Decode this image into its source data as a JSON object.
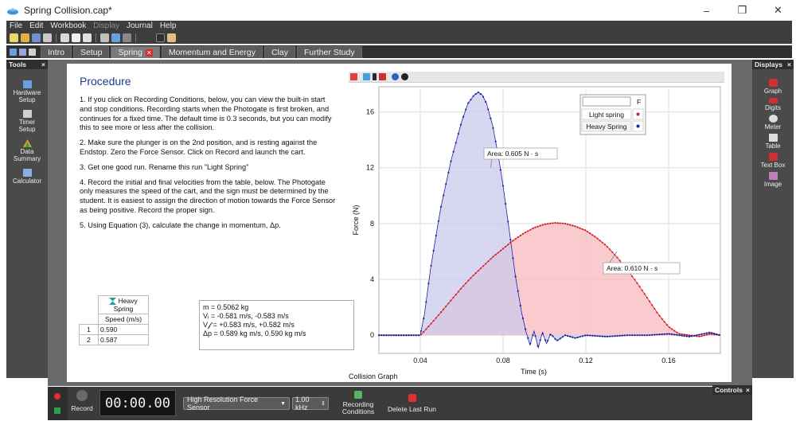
{
  "window": {
    "title": "Spring Collision.cap*",
    "controls": [
      "–",
      "❐",
      "✕"
    ]
  },
  "menu": [
    {
      "label": "File",
      "enabled": true
    },
    {
      "label": "Edit",
      "enabled": true
    },
    {
      "label": "Workbook",
      "enabled": true
    },
    {
      "label": "Display",
      "enabled": false
    },
    {
      "label": "Journal",
      "enabled": true
    },
    {
      "label": "Help",
      "enabled": true
    }
  ],
  "tabs": [
    {
      "label": "Intro",
      "active": false
    },
    {
      "label": "Setup",
      "active": false
    },
    {
      "label": "Spring",
      "active": true,
      "close": "✕"
    },
    {
      "label": "Momentum and Energy",
      "active": false
    },
    {
      "label": "Clay",
      "active": false
    },
    {
      "label": "Further Study",
      "active": false
    }
  ],
  "tools": {
    "header": "Tools",
    "close": "×",
    "items": [
      {
        "label1": "Hardware",
        "label2": "Setup",
        "icon": "hardware-icon",
        "color": "#6a9fe0"
      },
      {
        "label1": "Timer",
        "label2": "Setup",
        "icon": "timer-icon",
        "color": "#d0d0d0"
      },
      {
        "label1": "Data",
        "label2": "Summary",
        "icon": "data-summary-icon",
        "color": "#e0a030"
      },
      {
        "label1": "Calculator",
        "label2": "",
        "icon": "calculator-icon",
        "color": "#8ab0e0"
      }
    ]
  },
  "displays": {
    "header": "Displays",
    "close": "×",
    "items": [
      {
        "label": "Graph",
        "icon": "graph-icon",
        "color": "#cc3030"
      },
      {
        "label": "Digits",
        "icon": "digits-icon",
        "color": "#cc3030"
      },
      {
        "label": "Meter",
        "icon": "meter-icon",
        "color": "#dddddd"
      },
      {
        "label": "Table",
        "icon": "table-icon",
        "color": "#dddddd"
      },
      {
        "label": "Text Box",
        "icon": "text-box-icon",
        "color": "#cc3030"
      },
      {
        "label": "Image",
        "icon": "image-icon",
        "color": "#c080c0"
      }
    ]
  },
  "procedure": {
    "heading": "Procedure",
    "steps": [
      "1.  If you click on Recording Conditions, below, you can view the built-in start and stop conditions.  Recording starts when the Photogate is first broken, and continues for a fixed time.  The default time is 0.3 seconds, but you can modify this to see more or less after the collision.",
      "2.  Make sure the plunger is on the 2nd position, and is resting against the Endstop.  Zero the Force Sensor.  Click on Record and launch the cart.",
      "3.  Get one good run. Rename this run \"Light Spring\"",
      "4.   Record the initial and final velocities from the table, below. The Photogate only measures the speed of the cart, and the sign must be determined by the student.  It is easiest to assign the direction of motion towards the Force Sensor as being positive. Record the proper sign.",
      "5.  Using Equation (3), calculate the change in momentum, Δp."
    ]
  },
  "speed_table": {
    "run_label": "Heavy Spring",
    "column": "Speed (m/s)",
    "rows": [
      {
        "index": "1",
        "value": "0.590"
      },
      {
        "index": "2",
        "value": "0.587"
      }
    ]
  },
  "results": {
    "lines": [
      "m = 0.5062 kg",
      "Vᵢ = -0.581 m/s, -0.583 m/s",
      "V𝒻 = +0.583 m/s, +0.582 m/s",
      "Δp = 0.589 kg m/s, 0.590 kg m/s"
    ]
  },
  "graph": {
    "caption": "Collision Graph",
    "legend_header": "F"
  },
  "chart_data": {
    "type": "area",
    "title": "Collision Graph",
    "xlabel": "Time (s)",
    "ylabel": "Force (N)",
    "xlim": [
      0.02,
      0.185
    ],
    "ylim": [
      -1.3,
      17.8
    ],
    "xticks": [
      0.04,
      0.08,
      0.12,
      0.16
    ],
    "xticklabels": [
      "0.04",
      "0.08",
      "0.12",
      "0.16"
    ],
    "yticks": [
      0,
      4,
      8,
      12,
      16
    ],
    "yticklabels": [
      "0",
      "4",
      "8",
      "12",
      "16"
    ],
    "grid": true,
    "legend_position": "top-right",
    "series": [
      {
        "name": "Light spring",
        "color": "#d42020",
        "fill": "#f7b9bf",
        "x": [
          0.02,
          0.04,
          0.042,
          0.045,
          0.048,
          0.052,
          0.056,
          0.06,
          0.065,
          0.07,
          0.075,
          0.08,
          0.085,
          0.09,
          0.095,
          0.1,
          0.105,
          0.11,
          0.115,
          0.12,
          0.125,
          0.13,
          0.135,
          0.14,
          0.145,
          0.15,
          0.155,
          0.16,
          0.165,
          0.17,
          0.175,
          0.18,
          0.185
        ],
        "y": [
          0.0,
          0.0,
          0.3,
          0.8,
          1.3,
          2.0,
          2.7,
          3.4,
          4.2,
          4.9,
          5.6,
          6.2,
          6.8,
          7.3,
          7.7,
          7.95,
          8.05,
          8.0,
          7.8,
          7.5,
          7.0,
          6.4,
          5.6,
          4.7,
          3.7,
          2.6,
          1.5,
          0.6,
          0.1,
          0.0,
          -0.1,
          0.1,
          0.0
        ]
      },
      {
        "name": "Heavy Spring",
        "color": "#2020a0",
        "fill": "#c9c9ec",
        "x": [
          0.02,
          0.04,
          0.042,
          0.045,
          0.048,
          0.05,
          0.055,
          0.06,
          0.063,
          0.066,
          0.068,
          0.07,
          0.072,
          0.075,
          0.078,
          0.08,
          0.083,
          0.086,
          0.089,
          0.091,
          0.093,
          0.095,
          0.097,
          0.099,
          0.101,
          0.103,
          0.106,
          0.11,
          0.115,
          0.12,
          0.13,
          0.14,
          0.15,
          0.16,
          0.17,
          0.18,
          0.185
        ],
        "y": [
          0.0,
          0.0,
          1.5,
          4.8,
          7.5,
          9.2,
          12.6,
          15.3,
          16.6,
          17.2,
          17.4,
          17.2,
          16.6,
          15.0,
          12.6,
          10.7,
          7.5,
          4.2,
          1.6,
          0.3,
          -0.7,
          0.3,
          -0.9,
          0.2,
          -0.6,
          0.1,
          -0.4,
          0.0,
          -0.2,
          0.0,
          -0.1,
          0.0,
          0.0,
          0.1,
          -0.1,
          0.2,
          0.0
        ]
      }
    ],
    "annotations": [
      {
        "text": "Area: 0.605 N · s",
        "series": "Heavy Spring"
      },
      {
        "text": "Area: 0.610 N · s",
        "series": "Light spring"
      }
    ]
  },
  "controls": {
    "header": "Controls",
    "close": "×",
    "record": "Record",
    "timer": "00:00.00",
    "sensor": "High Resolution Force Sensor",
    "rate": "1.00 kHz",
    "recording_conditions1": "Recording",
    "recording_conditions2": "Conditions",
    "delete_last_run": "Delete Last Run"
  }
}
